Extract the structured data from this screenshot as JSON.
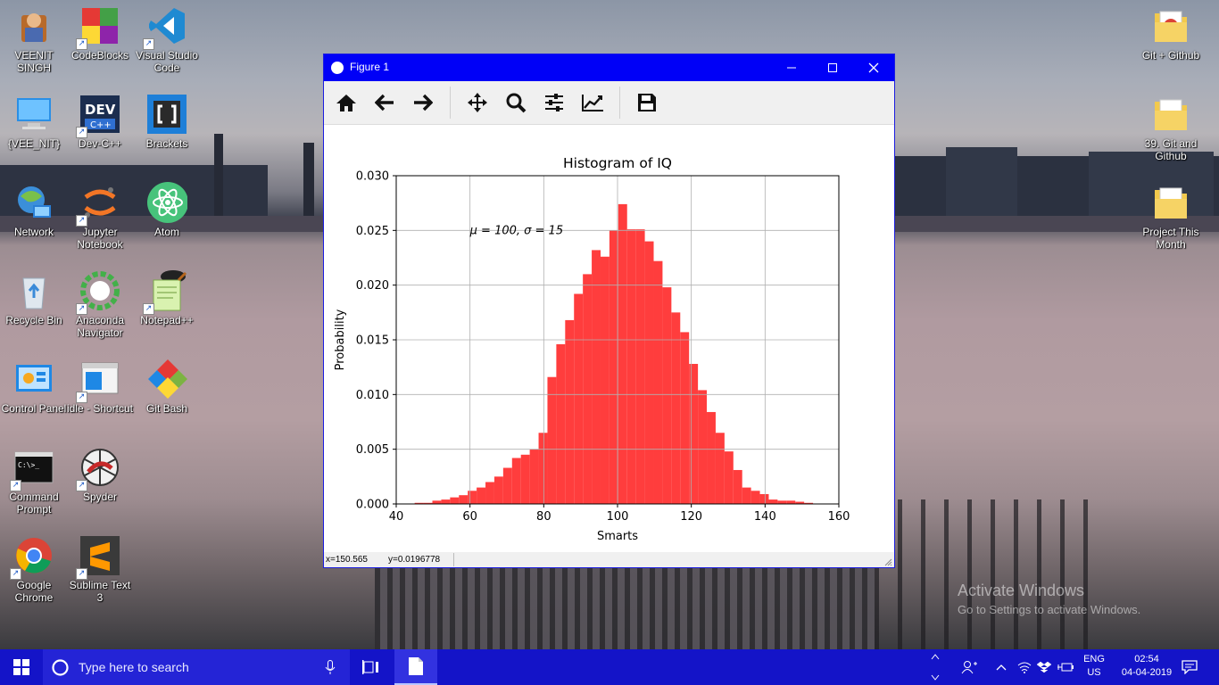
{
  "desktop": {
    "icons": [
      {
        "label": "VEENIT SINGH",
        "icon": "user-folder-icon"
      },
      {
        "label": "CodeBlocks",
        "icon": "codeblocks-icon"
      },
      {
        "label": "Visual Studio Code",
        "icon": "vscode-icon"
      },
      {
        "label": "{VEE_NIT}",
        "icon": "computer-icon"
      },
      {
        "label": "Dev-C++",
        "icon": "devcpp-icon"
      },
      {
        "label": "Brackets",
        "icon": "brackets-icon"
      },
      {
        "label": "Network",
        "icon": "network-icon"
      },
      {
        "label": "Jupyter Notebook",
        "icon": "jupyter-icon"
      },
      {
        "label": "Atom",
        "icon": "atom-icon"
      },
      {
        "label": "Recycle Bin",
        "icon": "recycle-bin-icon"
      },
      {
        "label": "Anaconda Navigator",
        "icon": "anaconda-icon"
      },
      {
        "label": "Notepad++",
        "icon": "notepadpp-icon"
      },
      {
        "label": "Control Panel",
        "icon": "control-panel-icon"
      },
      {
        "label": "idle - Shortcut",
        "icon": "idle-icon"
      },
      {
        "label": "Git Bash",
        "icon": "git-bash-icon"
      },
      {
        "label": "Command Prompt",
        "icon": "cmd-icon"
      },
      {
        "label": "Spyder",
        "icon": "spyder-icon"
      },
      {
        "label": "Google Chrome",
        "icon": "chrome-icon"
      },
      {
        "label": "Sublime Text 3",
        "icon": "sublime-icon"
      },
      {
        "label": "Git + Github",
        "icon": "folder-icon"
      },
      {
        "label": "39. Git and Github",
        "icon": "folder-icon"
      },
      {
        "label": "Project This Month",
        "icon": "folder-icon"
      }
    ],
    "watermark": {
      "line1": "Activate Windows",
      "line2": "Go to Settings to activate Windows."
    }
  },
  "window": {
    "title": "Figure 1",
    "toolbar": [
      "home-icon",
      "back-arrow-icon",
      "forward-arrow-icon",
      "pan-move-icon",
      "zoom-magnifier-icon",
      "configure-subplots-icon",
      "edit-axis-icon",
      "save-floppy-icon"
    ],
    "status": {
      "x": "x=150.565",
      "y": "y=0.0196778"
    }
  },
  "chart_data": {
    "type": "bar",
    "title": "Histogram of IQ",
    "xlabel": "Smarts",
    "ylabel": "Probability",
    "annotation": "μ = 100,  σ = 15",
    "xlim": [
      40,
      160
    ],
    "ylim": [
      0,
      0.03
    ],
    "xticks": [
      "40",
      "60",
      "80",
      "100",
      "120",
      "140",
      "160"
    ],
    "yticks": [
      "0.000",
      "0.005",
      "0.010",
      "0.015",
      "0.020",
      "0.025",
      "0.030"
    ],
    "grid": true,
    "bar_color": "#ff3333",
    "bin_width": 2.4,
    "bin_starts": [
      45.0,
      47.4,
      49.8,
      52.2,
      54.6,
      57.0,
      59.4,
      61.8,
      64.2,
      66.6,
      69.0,
      71.4,
      73.8,
      76.2,
      78.6,
      81.0,
      83.4,
      85.8,
      88.2,
      90.6,
      93.0,
      95.4,
      97.8,
      100.2,
      102.6,
      105.0,
      107.4,
      109.8,
      112.2,
      114.6,
      117.0,
      119.4,
      121.8,
      124.2,
      126.6,
      129.0,
      131.4,
      133.8,
      136.2,
      138.6,
      141.0,
      143.4,
      145.8,
      148.2,
      150.6
    ],
    "values": [
      0.0001,
      0.0001,
      0.0003,
      0.0004,
      0.0006,
      0.0008,
      0.0012,
      0.0015,
      0.002,
      0.0025,
      0.0033,
      0.0042,
      0.0045,
      0.005,
      0.0065,
      0.0116,
      0.0146,
      0.0168,
      0.0192,
      0.021,
      0.0232,
      0.0226,
      0.025,
      0.0274,
      0.0251,
      0.0251,
      0.024,
      0.0222,
      0.0198,
      0.0175,
      0.0157,
      0.0128,
      0.0104,
      0.0084,
      0.0065,
      0.0048,
      0.0031,
      0.0015,
      0.0012,
      0.0009,
      0.0004,
      0.0003,
      0.0003,
      0.0002,
      0.0001
    ]
  },
  "taskbar": {
    "search_placeholder": "Type here to search",
    "lang1": "ENG",
    "lang2": "US",
    "time": "02:54",
    "date": "04-04-2019"
  },
  "colors": {
    "titlebar": "#0000f7",
    "taskbar": "#1414c8",
    "bars": "#ff3333"
  }
}
